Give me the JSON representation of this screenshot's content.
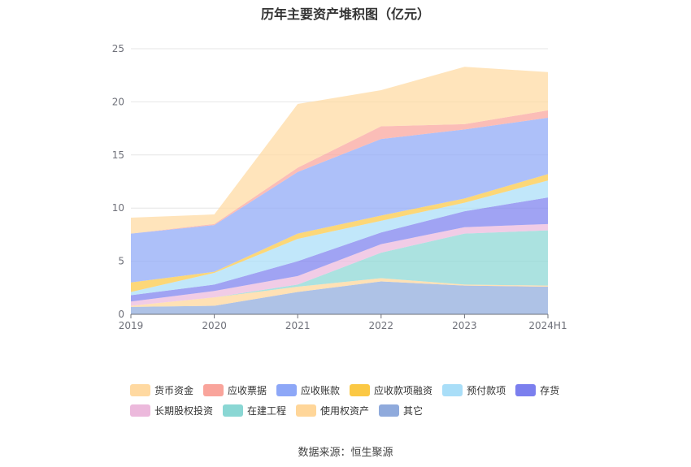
{
  "chart_data": {
    "type": "area",
    "stacked": true,
    "title": "历年主要资产堆积图（亿元）",
    "xlabel": "",
    "ylabel": "",
    "x": [
      "2019",
      "2020",
      "2021",
      "2022",
      "2023",
      "2024H1"
    ],
    "ylim": [
      0,
      25
    ],
    "yticks": [
      0,
      5,
      10,
      15,
      20,
      25
    ],
    "grid": true,
    "legend_position": "bottom",
    "series": [
      {
        "name": "其它",
        "color": "#8faadc",
        "values": [
          0.7,
          0.8,
          2.1,
          3.1,
          2.7,
          2.6
        ]
      },
      {
        "name": "使用权资产",
        "color": "#ffd699",
        "values": [
          0.1,
          0.8,
          0.5,
          0.3,
          0.1,
          0.1
        ]
      },
      {
        "name": "在建工程",
        "color": "#8ad7d4",
        "values": [
          0.0,
          0.0,
          0.2,
          2.4,
          4.8,
          5.2
        ]
      },
      {
        "name": "长期股权投资",
        "color": "#ecb9dc",
        "values": [
          0.4,
          0.6,
          0.8,
          0.8,
          0.6,
          0.6
        ]
      },
      {
        "name": "存货",
        "color": "#7b7fee",
        "values": [
          0.6,
          0.6,
          1.4,
          1.1,
          1.5,
          2.5
        ]
      },
      {
        "name": "预付款项",
        "color": "#a9def8",
        "values": [
          0.3,
          1.1,
          2.1,
          1.1,
          0.8,
          1.6
        ]
      },
      {
        "name": "应收款项融资",
        "color": "#fbc844",
        "values": [
          0.9,
          0.1,
          0.5,
          0.5,
          0.4,
          0.6
        ]
      },
      {
        "name": "应收账款",
        "color": "#8da7f7",
        "values": [
          4.6,
          4.4,
          5.8,
          7.2,
          6.5,
          5.3
        ]
      },
      {
        "name": "应收票据",
        "color": "#f9a49b",
        "values": [
          0.0,
          0.1,
          0.4,
          1.2,
          0.5,
          0.7
        ]
      },
      {
        "name": "货币资金",
        "color": "#ffd9a1",
        "values": [
          1.5,
          0.9,
          6.0,
          3.4,
          5.4,
          3.6
        ]
      }
    ]
  },
  "source_text": "数据来源：恒生聚源"
}
